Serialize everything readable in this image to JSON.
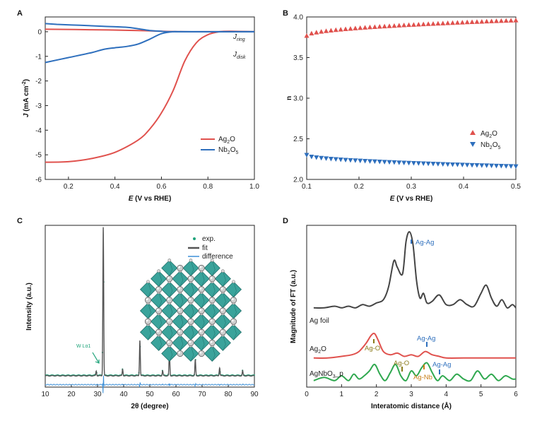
{
  "chart_data": [
    {
      "panel": "A",
      "type": "line",
      "xlabel_prefix": "E",
      "xlabel_suffix": " (V vs RHE)",
      "ylabel_prefix": "J",
      "ylabel_suffix": " (mA cm",
      "ylabel_sup": "-2",
      "ylabel_close": ")",
      "xlim": [
        0.1,
        1.0
      ],
      "ylim": [
        -6,
        0.6
      ],
      "xticks": [
        0.2,
        0.4,
        0.6,
        0.8,
        1.0
      ],
      "xtick_labels": [
        "0.2",
        "0.4",
        "0.6",
        "0.8",
        "1.0"
      ],
      "yticks": [
        0,
        -1,
        -2,
        -3,
        -4,
        -5,
        -6
      ],
      "ytick_labels": [
        "0",
        "-1",
        "-2",
        "-3",
        "-4",
        "-5",
        "-6"
      ],
      "annotations": [
        {
          "main": "J",
          "sub": "ring"
        },
        {
          "main": "J",
          "sub": "disk"
        }
      ],
      "series": [
        {
          "name": "Ag2O",
          "label_main": "Ag",
          "label_sub": "2",
          "label_end": "O",
          "color": "#e0514d",
          "x": [
            0.1,
            0.2,
            0.3,
            0.4,
            0.5,
            0.55,
            0.6,
            0.65,
            0.7,
            0.75,
            0.8,
            0.85,
            0.9,
            1.0
          ],
          "y": [
            -5.3,
            -5.28,
            -5.15,
            -4.9,
            -4.4,
            -3.95,
            -3.3,
            -2.4,
            -1.2,
            -0.45,
            -0.12,
            0.0,
            0.02,
            0.0
          ]
        },
        {
          "name": "Ag2O ring",
          "color": "#e0514d",
          "x": [
            0.1,
            0.3,
            0.5,
            0.6,
            0.7,
            0.8,
            1.0
          ],
          "y": [
            0.1,
            0.08,
            0.05,
            0.02,
            0.0,
            0.0,
            0.0
          ]
        },
        {
          "name": "Nb2O5",
          "label_main": "Nb",
          "label_sub": "2",
          "label_end": "O",
          "label_sub2": "5",
          "color": "#2e6fbd",
          "x": [
            0.1,
            0.2,
            0.3,
            0.35,
            0.4,
            0.45,
            0.5,
            0.55,
            0.6,
            0.65,
            0.7,
            1.0
          ],
          "y": [
            -1.25,
            -1.05,
            -0.85,
            -0.72,
            -0.65,
            -0.6,
            -0.5,
            -0.3,
            -0.08,
            0.0,
            0.0,
            0.0
          ]
        },
        {
          "name": "Nb2O5 ring",
          "color": "#2e6fbd",
          "x": [
            0.1,
            0.15,
            0.25,
            0.35,
            0.45,
            0.5,
            0.55,
            0.6,
            0.65,
            1.0
          ],
          "y": [
            0.33,
            0.3,
            0.26,
            0.22,
            0.18,
            0.12,
            0.05,
            0.02,
            0.0,
            0.0
          ]
        }
      ]
    },
    {
      "panel": "B",
      "type": "scatter",
      "xlabel_prefix": "E",
      "xlabel_suffix": " (V vs RHE)",
      "ylabel": "n",
      "xlim": [
        0.1,
        0.5
      ],
      "ylim": [
        2.0,
        4.0
      ],
      "xticks": [
        0.1,
        0.2,
        0.3,
        0.4,
        0.5
      ],
      "xtick_labels": [
        "0.1",
        "0.2",
        "0.3",
        "0.4",
        "0.5"
      ],
      "yticks": [
        2.0,
        2.5,
        3.0,
        3.5,
        4.0
      ],
      "ytick_labels": [
        "2.0",
        "2.5",
        "3.0",
        "3.5",
        "4.0"
      ],
      "series": [
        {
          "name": "Ag2O",
          "label_main": "Ag",
          "label_sub": "2",
          "label_end": "O",
          "color": "#e0514d",
          "marker": "triangle-up",
          "x_start": 0.1,
          "x_end": 0.5,
          "count": 44,
          "y_start": 3.77,
          "y_end": 3.96
        },
        {
          "name": "Nb2O5",
          "label_main": "Nb",
          "label_sub": "2",
          "label_end": "O",
          "label_sub2": "5",
          "color": "#2e6fbd",
          "marker": "triangle-down",
          "x_start": 0.1,
          "x_end": 0.5,
          "count": 44,
          "y_start": 2.3,
          "y_end": 2.16
        }
      ]
    },
    {
      "panel": "C",
      "type": "line",
      "xlabel": "2θ (degree)",
      "ylabel": "Intensity (a.u.)",
      "xlim": [
        10,
        90
      ],
      "ylim": [
        0,
        100
      ],
      "xticks": [
        10,
        20,
        30,
        40,
        50,
        60,
        70,
        80,
        90
      ],
      "xtick_labels": [
        "10",
        "20",
        "30",
        "40",
        "50",
        "60",
        "70",
        "80",
        "90"
      ],
      "annotation": "W Lα1",
      "legend": [
        "exp.",
        "fit",
        "difference"
      ],
      "baseline": 7,
      "diff_level": 1.5,
      "peaks": [
        {
          "x": 29.5,
          "h": 3
        },
        {
          "x": 32.2,
          "h": 92
        },
        {
          "x": 39.6,
          "h": 4
        },
        {
          "x": 46.2,
          "h": 22
        },
        {
          "x": 54.9,
          "h": 3
        },
        {
          "x": 57.5,
          "h": 15
        },
        {
          "x": 67.4,
          "h": 10
        },
        {
          "x": 76.7,
          "h": 5
        },
        {
          "x": 85.5,
          "h": 3
        }
      ],
      "colors": {
        "exp": "#1fa37a",
        "fit": "#555555",
        "difference": "#3b8fd8"
      }
    },
    {
      "panel": "D",
      "type": "line",
      "xlabel": "Interatomic distance (Å)",
      "ylabel": "Magnitude of FT (a.u.)",
      "xlim": [
        0,
        6
      ],
      "ylim": [
        0,
        100
      ],
      "xticks": [
        0,
        1,
        2,
        3,
        4,
        5,
        6
      ],
      "xtick_labels": [
        "0",
        "1",
        "2",
        "3",
        "4",
        "5",
        "6"
      ],
      "series": [
        {
          "name": "Ag foil",
          "color": "#444444",
          "x": [
            0.2,
            0.5,
            0.8,
            1.0,
            1.2,
            1.4,
            1.6,
            1.8,
            2.0,
            2.2,
            2.35,
            2.5,
            2.6,
            2.75,
            2.85,
            2.95,
            3.05,
            3.15,
            3.25,
            3.35,
            3.45,
            3.6,
            3.8,
            4.0,
            4.2,
            4.4,
            4.6,
            4.8,
            5.0,
            5.15,
            5.3,
            5.45,
            5.6,
            5.75,
            5.9,
            6.0
          ],
          "y": [
            49,
            49,
            50,
            49,
            50,
            49,
            51,
            50,
            52,
            54,
            62,
            78,
            74,
            70,
            90,
            96,
            88,
            66,
            55,
            58,
            52,
            53,
            57,
            51,
            51,
            54,
            51,
            50,
            58,
            63,
            55,
            50,
            54,
            49,
            51,
            49
          ]
        },
        {
          "name": "Ag2O",
          "label_main": "Ag",
          "label_sub": "2",
          "label_end": "O",
          "color": "#e0514d",
          "x": [
            0.2,
            0.6,
            1.0,
            1.3,
            1.5,
            1.7,
            1.85,
            1.95,
            2.05,
            2.2,
            2.4,
            2.6,
            2.8,
            3.0,
            3.2,
            3.4,
            3.6,
            3.8,
            4.0,
            4.5,
            5.0,
            5.5,
            6.0
          ],
          "y": [
            18,
            18,
            19,
            20,
            22,
            27,
            32,
            33,
            29,
            22,
            20,
            21,
            19,
            20,
            19,
            22,
            20,
            19,
            18,
            18,
            18,
            18,
            18
          ]
        },
        {
          "name": "AgNbO3_p",
          "color": "#2fa84f",
          "x": [
            0.2,
            0.5,
            0.8,
            1.0,
            1.2,
            1.35,
            1.5,
            1.65,
            1.8,
            1.95,
            2.1,
            2.25,
            2.4,
            2.55,
            2.7,
            2.85,
            3.0,
            3.15,
            3.3,
            3.45,
            3.6,
            3.75,
            3.9,
            4.1,
            4.3,
            4.5,
            4.7,
            4.9,
            5.1,
            5.3,
            5.5,
            5.7,
            5.9,
            6.0
          ],
          "y": [
            4,
            6,
            4,
            7,
            4,
            8,
            5,
            7,
            10,
            14,
            8,
            4,
            9,
            14,
            7,
            4,
            10,
            7,
            12,
            15,
            9,
            4,
            7,
            4,
            8,
            5,
            4,
            10,
            5,
            8,
            4,
            7,
            5,
            5
          ]
        }
      ],
      "curve_labels": [
        {
          "text": "Ag foil",
          "color": "#222222"
        },
        {
          "main": "Ag",
          "sub": "2",
          "end": "O",
          "color": "#222222"
        },
        {
          "main": "AgNbO",
          "sub": "3",
          "end": "_p",
          "color": "#222222"
        }
      ],
      "markers": [
        {
          "text": "Ag-Ag",
          "color": "#2e6fbd"
        },
        {
          "text": "Ag-O",
          "color": "#8a7a1a"
        },
        {
          "text": "Ag-Ag",
          "color": "#2e6fbd"
        },
        {
          "text": "Ag-O",
          "color": "#8a7a1a"
        },
        {
          "text": "Ag-Nb",
          "color": "#c8801a"
        },
        {
          "text": "Ag-Ag",
          "color": "#2e6fbd"
        }
      ]
    }
  ]
}
